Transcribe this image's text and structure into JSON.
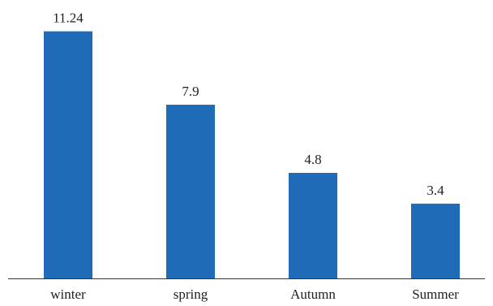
{
  "chart_data": {
    "type": "bar",
    "categories": [
      "winter",
      "spring",
      "Autumn",
      "Summer"
    ],
    "values": [
      11.24,
      7.9,
      4.8,
      3.4
    ],
    "data_labels": [
      "11.24",
      "7.9",
      "4.8",
      "3.4"
    ],
    "title": "",
    "xlabel": "",
    "ylabel": "",
    "ylim": [
      0,
      12
    ],
    "grid": false,
    "legend": "none",
    "bar_color": "#1f6bb8",
    "axis_color": "#333333"
  }
}
